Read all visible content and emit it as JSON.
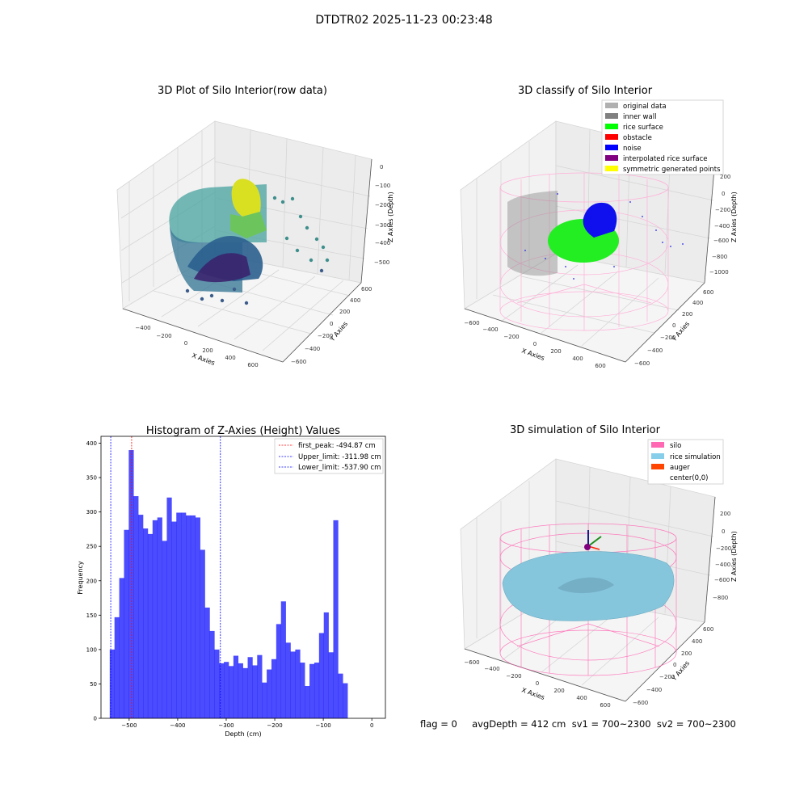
{
  "suptitle": "DTDTR02 2025-11-23 00:23:48",
  "status_line": "flag = 0     avgDepth = 412 cm  sv1 = 700~2300  sv2 = 700~2300",
  "chart_data": [
    {
      "type": "scatter",
      "title": "3D Plot of Silo Interior(row data)",
      "xlabel": "X Axies",
      "ylabel": "Y Axies",
      "zlabel": "Z Axies (Depth)",
      "x_ticks": [
        "−400",
        "−200",
        "0",
        "200",
        "400",
        "600"
      ],
      "y_ticks": [
        "−600",
        "−400",
        "−200",
        "0",
        "200",
        "400",
        "600"
      ],
      "z_ticks": [
        "0",
        "−100",
        "−200",
        "−300",
        "−400",
        "−500"
      ],
      "zlim": [
        -540,
        0
      ]
    },
    {
      "type": "scatter",
      "title": "3D classify of Silo Interior",
      "xlabel": "X Axies",
      "ylabel": "Y Axies",
      "zlabel": "Z Axies (Depth)",
      "x_ticks": [
        "−600",
        "−400",
        "−200",
        "0",
        "200",
        "400",
        "600"
      ],
      "y_ticks": [
        "−600",
        "−400",
        "−200",
        "0",
        "200",
        "400",
        "600"
      ],
      "z_ticks": [
        "200",
        "0",
        "−200",
        "−400",
        "−600",
        "−800",
        "−1000"
      ],
      "legend_position": "top-right",
      "legend": [
        {
          "label": "original data",
          "color": "#b0b0b0"
        },
        {
          "label": "inner wall",
          "color": "#808080"
        },
        {
          "label": "rice surface",
          "color": "#00ff00"
        },
        {
          "label": "obstacle",
          "color": "#ff0000"
        },
        {
          "label": "noise",
          "color": "#0000ff"
        },
        {
          "label": "interpolated rice surface",
          "color": "#800080"
        },
        {
          "label": "symmetric generated points",
          "color": "#ffff00"
        }
      ]
    },
    {
      "type": "bar",
      "title": "Histogram of Z-Axies (Height) Values",
      "xlabel": "Depth (cm)",
      "ylabel": "Frequency",
      "xlim": [
        -558,
        28
      ],
      "ylim": [
        0,
        410
      ],
      "x_ticks": [
        -500,
        -400,
        -300,
        -200,
        -100,
        0
      ],
      "y_ticks": [
        0,
        50,
        100,
        150,
        200,
        250,
        300,
        350,
        400
      ],
      "bar_color": "#0000ff",
      "bin_edges_start": -540,
      "bin_width": 9.8,
      "values": [
        100,
        147,
        204,
        274,
        390,
        323,
        296,
        276,
        268,
        288,
        292,
        258,
        321,
        286,
        299,
        299,
        295,
        295,
        292,
        245,
        161,
        127,
        100,
        80,
        82,
        76,
        91,
        80,
        73,
        89,
        77,
        92,
        52,
        71,
        86,
        137,
        170,
        110,
        97,
        100,
        81,
        47,
        79,
        81,
        124,
        154,
        96,
        288,
        65,
        51
      ],
      "vlines": [
        {
          "label": "first_peak: -494.87 cm",
          "x": -494.87,
          "color": "#ff0000"
        },
        {
          "label": "Upper_limit: -311.98 cm",
          "x": -311.98,
          "color": "#0000ff"
        },
        {
          "label": "Lower_limit: -537.90 cm",
          "x": -537.9,
          "color": "#0000ff"
        }
      ],
      "legend_position": "top-right"
    },
    {
      "type": "scatter",
      "title": "3D simulation of Silo Interior",
      "xlabel": "X Axies",
      "ylabel": "Y Axies",
      "zlabel": "Z Axies (Depth)",
      "x_ticks": [
        "−600",
        "−400",
        "−200",
        "0",
        "200",
        "400",
        "600"
      ],
      "y_ticks": [
        "−600",
        "−400",
        "−200",
        "0",
        "200",
        "400",
        "600"
      ],
      "z_ticks": [
        "200",
        "0",
        "−200",
        "−400",
        "−600",
        "−800"
      ],
      "legend_position": "top-right",
      "legend": [
        {
          "label": "silo",
          "color": "#ff69b4"
        },
        {
          "label": "rice simulation",
          "color": "#87ceeb"
        },
        {
          "label": "auger",
          "color": "#ff4500"
        },
        {
          "label": "center(0,0)",
          "color": "#ffffff"
        }
      ]
    }
  ]
}
